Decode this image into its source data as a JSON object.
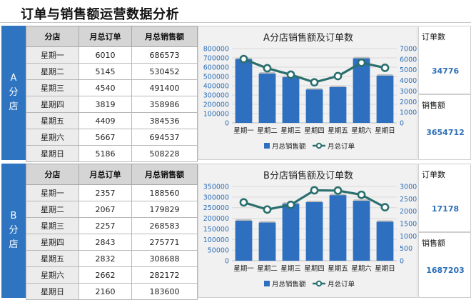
{
  "title": "订单与销售额运营数据分析",
  "colors": {
    "bar": "#2e6fbf",
    "line": "#2b6f6f",
    "side": "#2e74c0",
    "value": "#2e6fb7"
  },
  "headers": {
    "store": "分店",
    "orders": "月总订单",
    "sales": "月总销售额"
  },
  "stat_labels": {
    "orders": "订单数",
    "sales": "销售额"
  },
  "legend": {
    "bar": "月总销售额",
    "line": "月总订单"
  },
  "panels": [
    {
      "side_label": [
        "A",
        "分",
        "店"
      ],
      "order_total": "34776",
      "sales_total": "3654712",
      "rows": [
        {
          "day": "星期一",
          "orders": "6010",
          "sales": "686573"
        },
        {
          "day": "星期二",
          "orders": "5145",
          "sales": "530452"
        },
        {
          "day": "星期三",
          "orders": "4540",
          "sales": "491400"
        },
        {
          "day": "星期四",
          "orders": "3819",
          "sales": "358986"
        },
        {
          "day": "星期五",
          "orders": "4409",
          "sales": "384536"
        },
        {
          "day": "星期六",
          "orders": "5667",
          "sales": "694537"
        },
        {
          "day": "星期日",
          "orders": "5186",
          "sales": "508228"
        }
      ]
    },
    {
      "side_label": [
        "B",
        "分",
        "店"
      ],
      "order_total": "17178",
      "sales_total": "1687203",
      "rows": [
        {
          "day": "星期一",
          "orders": "2357",
          "sales": "188560"
        },
        {
          "day": "星期二",
          "orders": "2067",
          "sales": "179829"
        },
        {
          "day": "星期三",
          "orders": "2257",
          "sales": "268583"
        },
        {
          "day": "星期四",
          "orders": "2843",
          "sales": "275771"
        },
        {
          "day": "星期五",
          "orders": "2832",
          "sales": "308688"
        },
        {
          "day": "星期六",
          "orders": "2662",
          "sales": "282172"
        },
        {
          "day": "星期日",
          "orders": "2160",
          "sales": "183600"
        }
      ]
    }
  ],
  "chart_data": [
    {
      "type": "bar",
      "title": "A分店销售额及订单数",
      "categories": [
        "星期一",
        "星期二",
        "星期三",
        "星期四",
        "星期五",
        "星期六",
        "星期日"
      ],
      "series": [
        {
          "name": "月总销售额",
          "type": "bar",
          "axis": "left",
          "values": [
            686573,
            530452,
            491400,
            358986,
            384536,
            694537,
            508228
          ]
        },
        {
          "name": "月总订单",
          "type": "line",
          "axis": "right",
          "values": [
            6010,
            5145,
            4540,
            3819,
            4409,
            5667,
            5186
          ]
        }
      ],
      "ylim": [
        0,
        800000
      ],
      "yticks": [
        "0",
        "100000",
        "200000",
        "300000",
        "400000",
        "500000",
        "600000",
        "700000",
        "800000"
      ],
      "y2lim": [
        0,
        7000
      ],
      "y2ticks": [
        "0",
        "1000",
        "2000",
        "3000",
        "4000",
        "5000",
        "6000",
        "7000"
      ],
      "legend_position": "bottom"
    },
    {
      "type": "bar",
      "title": "B分店销售额及订单数",
      "categories": [
        "星期一",
        "星期二",
        "星期三",
        "星期四",
        "星期五",
        "星期六",
        "星期日"
      ],
      "series": [
        {
          "name": "月总销售额",
          "type": "bar",
          "axis": "left",
          "values": [
            188560,
            179829,
            268583,
            275771,
            308688,
            282172,
            183600
          ]
        },
        {
          "name": "月总订单",
          "type": "line",
          "axis": "right",
          "values": [
            2357,
            2067,
            2257,
            2843,
            2832,
            2662,
            2160
          ]
        }
      ],
      "ylim": [
        0,
        350000
      ],
      "yticks": [
        "0",
        "50000",
        "100000",
        "150000",
        "200000",
        "250000",
        "300000",
        "350000"
      ],
      "y2lim": [
        0,
        3000
      ],
      "y2ticks": [
        "0",
        "500",
        "1000",
        "1500",
        "2000",
        "2500",
        "3000"
      ],
      "legend_position": "bottom"
    }
  ]
}
